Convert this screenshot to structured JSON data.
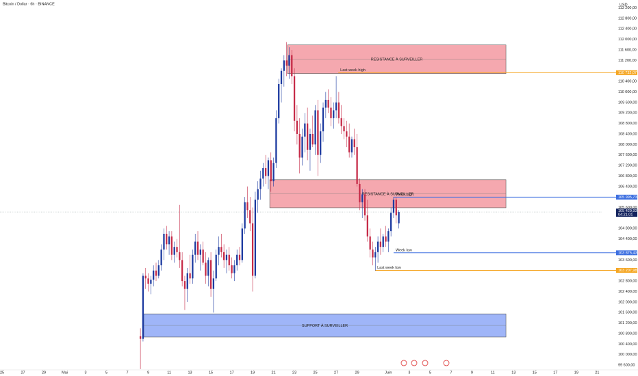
{
  "chart_data": {
    "type": "candlestick",
    "title": "Bitcoin / Dollar · 6h · BINANCE",
    "currency": "USD",
    "up_color": "#1c3aa0",
    "down_color": "#c62a47",
    "xlim": [
      -0.2,
      57.5
    ],
    "ylim": [
      99420,
      113500
    ],
    "xticks": [
      {
        "value": 0,
        "label": "25"
      },
      {
        "value": 2,
        "label": "27"
      },
      {
        "value": 4,
        "label": "29"
      },
      {
        "value": 6,
        "label": "Mai"
      },
      {
        "value": 8,
        "label": "3"
      },
      {
        "value": 10,
        "label": "5"
      },
      {
        "value": 12,
        "label": "7"
      },
      {
        "value": 14,
        "label": "9"
      },
      {
        "value": 16,
        "label": "11"
      },
      {
        "value": 18,
        "label": "13"
      },
      {
        "value": 20,
        "label": "15"
      },
      {
        "value": 22,
        "label": "17"
      },
      {
        "value": 24,
        "label": "19"
      },
      {
        "value": 26,
        "label": "21"
      },
      {
        "value": 28,
        "label": "23"
      },
      {
        "value": 30,
        "label": "25"
      },
      {
        "value": 32,
        "label": "27"
      },
      {
        "value": 34,
        "label": "29"
      },
      {
        "value": 37,
        "label": "Juin"
      },
      {
        "value": 39,
        "label": "3"
      },
      {
        "value": 41,
        "label": "5"
      },
      {
        "value": 43,
        "label": "7"
      },
      {
        "value": 45,
        "label": "9"
      },
      {
        "value": 47,
        "label": "11"
      },
      {
        "value": 49,
        "label": "13"
      },
      {
        "value": 51,
        "label": "15"
      },
      {
        "value": 53,
        "label": "17"
      },
      {
        "value": 55,
        "label": "19"
      },
      {
        "value": 57,
        "label": "21"
      }
    ],
    "yticks": [
      {
        "value": 113200,
        "label": "113 200,00"
      },
      {
        "value": 112800,
        "label": "112 800,00"
      },
      {
        "value": 112400,
        "label": "112 400,00"
      },
      {
        "value": 112000,
        "label": "112 000,00"
      },
      {
        "value": 111600,
        "label": "111 600,00"
      },
      {
        "value": 111200,
        "label": "111 200,00"
      },
      {
        "value": 110400,
        "label": "110 400,00"
      },
      {
        "value": 110000,
        "label": "110 000,00"
      },
      {
        "value": 109600,
        "label": "109 600,00"
      },
      {
        "value": 109200,
        "label": "109 200,00"
      },
      {
        "value": 108800,
        "label": "108 800,00"
      },
      {
        "value": 108400,
        "label": "108 400,00"
      },
      {
        "value": 108000,
        "label": "108 000,00"
      },
      {
        "value": 107600,
        "label": "107 600,00"
      },
      {
        "value": 107200,
        "label": "107 200,00"
      },
      {
        "value": 106800,
        "label": "106 800,00"
      },
      {
        "value": 106400,
        "label": "106 400,00"
      },
      {
        "value": 105600,
        "label": "105 600,00"
      },
      {
        "value": 104800,
        "label": "104 800,00"
      },
      {
        "value": 104400,
        "label": "104 400,00"
      },
      {
        "value": 103600,
        "label": "103 600,00"
      },
      {
        "value": 102800,
        "label": "102 800,00"
      },
      {
        "value": 102400,
        "label": "102 400,00"
      },
      {
        "value": 102000,
        "label": "102 000,00"
      },
      {
        "value": 101600,
        "label": "101 600,00"
      },
      {
        "value": 101200,
        "label": "101 200,00"
      },
      {
        "value": 100800,
        "label": "100 800,00"
      },
      {
        "value": 100400,
        "label": "100 400,00"
      },
      {
        "value": 100000,
        "label": "100 000,00"
      },
      {
        "value": 99600,
        "label": "99 600,00"
      }
    ],
    "x": [
      13.25,
      13.5,
      13.75,
      14,
      14.25,
      14.5,
      14.75,
      15,
      15.25,
      15.5,
      15.75,
      16,
      16.25,
      16.5,
      16.75,
      17,
      17.25,
      17.5,
      17.75,
      18,
      18.25,
      18.5,
      18.75,
      19,
      19.25,
      19.5,
      19.75,
      20,
      20.25,
      20.5,
      20.75,
      21,
      21.25,
      21.5,
      21.75,
      22,
      22.25,
      22.5,
      22.75,
      23,
      23.25,
      23.5,
      23.75,
      24,
      24.25,
      24.5,
      24.75,
      25,
      25.25,
      25.5,
      25.75,
      26,
      26.25,
      26.5,
      26.75,
      27,
      27.25,
      27.5,
      27.75,
      28,
      28.25,
      28.5,
      28.75,
      29,
      29.25,
      29.5,
      29.75,
      30,
      30.25,
      30.5,
      30.75,
      31,
      31.25,
      31.5,
      31.75,
      32,
      32.25,
      32.5,
      32.75,
      33,
      33.25,
      33.5,
      33.75,
      34,
      34.25,
      34.5,
      34.75,
      35,
      35.25,
      35.5,
      35.75,
      36,
      36.25,
      36.5,
      36.75,
      37,
      37.25,
      37.5,
      37.75,
      38
    ],
    "ohlc": [
      [
        100700,
        101000,
        99450,
        100600
      ],
      [
        100600,
        103100,
        100500,
        103000
      ],
      [
        103000,
        103300,
        102500,
        102900
      ],
      [
        102900,
        103100,
        102400,
        102700
      ],
      [
        102700,
        103000,
        102300,
        102850
      ],
      [
        102850,
        103400,
        102600,
        103200
      ],
      [
        103200,
        103500,
        102800,
        103000
      ],
      [
        103000,
        103600,
        102900,
        103400
      ],
      [
        103400,
        104200,
        103200,
        104000
      ],
      [
        104000,
        104800,
        103600,
        104600
      ],
      [
        104600,
        104900,
        104000,
        104200
      ],
      [
        104200,
        104700,
        103800,
        104500
      ],
      [
        104500,
        104700,
        103600,
        103800
      ],
      [
        103800,
        104300,
        103500,
        104100
      ],
      [
        104100,
        104400,
        103700,
        103900
      ],
      [
        103900,
        105700,
        103300,
        103600
      ],
      [
        103600,
        103900,
        102600,
        102800
      ],
      [
        102800,
        103000,
        101700,
        102500
      ],
      [
        102500,
        103300,
        102000,
        103100
      ],
      [
        103100,
        103800,
        102700,
        102900
      ],
      [
        102900,
        104000,
        102700,
        103800
      ],
      [
        103800,
        104600,
        103500,
        104300
      ],
      [
        104300,
        104700,
        103600,
        103800
      ],
      [
        103800,
        104200,
        103200,
        104000
      ],
      [
        104000,
        104300,
        103400,
        103500
      ],
      [
        103500,
        103900,
        102700,
        103000
      ],
      [
        103000,
        103700,
        102600,
        103600
      ],
      [
        103600,
        103900,
        102200,
        102500
      ],
      [
        102500,
        103200,
        101600,
        102900
      ],
      [
        102900,
        104000,
        102800,
        103800
      ],
      [
        103800,
        104500,
        103400,
        104100
      ],
      [
        104100,
        104600,
        103700,
        103900
      ],
      [
        103900,
        104200,
        103300,
        103600
      ],
      [
        103600,
        104000,
        103100,
        103800
      ],
      [
        103800,
        104100,
        103200,
        103400
      ],
      [
        103400,
        103700,
        102900,
        103100
      ],
      [
        103100,
        103600,
        102800,
        103400
      ],
      [
        103400,
        104000,
        103200,
        103800
      ],
      [
        103800,
        104100,
        103400,
        103600
      ],
      [
        103600,
        105000,
        103500,
        104800
      ],
      [
        104800,
        106000,
        104600,
        105800
      ],
      [
        105800,
        106400,
        105200,
        105500
      ],
      [
        105500,
        106000,
        104700,
        105000
      ],
      [
        105000,
        105600,
        102400,
        103000
      ],
      [
        103000,
        106200,
        102900,
        105900
      ],
      [
        105900,
        106600,
        105400,
        106300
      ],
      [
        106300,
        107000,
        105900,
        106700
      ],
      [
        106700,
        107300,
        106400,
        107100
      ],
      [
        107100,
        107600,
        106500,
        106800
      ],
      [
        106800,
        107500,
        106300,
        107400
      ],
      [
        107400,
        107700,
        106200,
        106600
      ],
      [
        106600,
        107500,
        106400,
        107300
      ],
      [
        107300,
        109300,
        107100,
        109000
      ],
      [
        109000,
        110500,
        108800,
        110300
      ],
      [
        110300,
        110900,
        109600,
        110800
      ],
      [
        110800,
        111400,
        110200,
        111200
      ],
      [
        111200,
        111900,
        110600,
        111000
      ],
      [
        111000,
        111700,
        110500,
        111400
      ],
      [
        111400,
        111600,
        110300,
        110600
      ],
      [
        110600,
        110900,
        108500,
        108900
      ],
      [
        108900,
        109500,
        108000,
        108400
      ],
      [
        108400,
        109000,
        106900,
        107500
      ],
      [
        107500,
        108600,
        107200,
        108300
      ],
      [
        108300,
        109200,
        107700,
        108800
      ],
      [
        108800,
        109400,
        107400,
        107800
      ],
      [
        107800,
        108600,
        107000,
        108400
      ],
      [
        108400,
        109100,
        107900,
        108000
      ],
      [
        108000,
        109500,
        107600,
        109300
      ],
      [
        109300,
        109700,
        106800,
        107600
      ],
      [
        107600,
        108800,
        107300,
        108500
      ],
      [
        108500,
        109600,
        108100,
        109400
      ],
      [
        109400,
        110000,
        109000,
        109700
      ],
      [
        109700,
        110100,
        109200,
        109400
      ],
      [
        109400,
        109800,
        108700,
        109000
      ],
      [
        109000,
        109600,
        108600,
        109300
      ],
      [
        109300,
        110600,
        109000,
        109600
      ],
      [
        109600,
        110000,
        108800,
        109000
      ],
      [
        109000,
        109500,
        108400,
        108700
      ],
      [
        108700,
        109000,
        108200,
        108500
      ],
      [
        108500,
        108900,
        107900,
        108300
      ],
      [
        108300,
        108800,
        107500,
        107700
      ],
      [
        107700,
        108300,
        107500,
        108200
      ],
      [
        108200,
        108600,
        107600,
        107900
      ],
      [
        107900,
        108400,
        106400,
        106500
      ],
      [
        106500,
        106700,
        105500,
        105800
      ],
      [
        105800,
        106300,
        105200,
        106100
      ],
      [
        106100,
        106300,
        105100,
        105300
      ],
      [
        105300,
        105900,
        104300,
        104500
      ],
      [
        104500,
        104800,
        103700,
        104000
      ],
      [
        104000,
        104300,
        103400,
        103700
      ],
      [
        103700,
        104100,
        103200,
        103900
      ],
      [
        103900,
        104500,
        103500,
        104300
      ],
      [
        104300,
        104800,
        103800,
        104100
      ],
      [
        104100,
        104600,
        103900,
        104500
      ],
      [
        104500,
        104900,
        104100,
        104300
      ],
      [
        104300,
        104800,
        103900,
        104700
      ],
      [
        104700,
        105600,
        104500,
        105400
      ],
      [
        105400,
        106000,
        105200,
        105900
      ],
      [
        105900,
        106000,
        105000,
        105300
      ],
      [
        105000,
        105500,
        104800,
        105429.93
      ]
    ],
    "zones": [
      {
        "label": "RESISTANCE À SURVEILLER",
        "top": 111790,
        "bottom": 110700,
        "start": 27.34,
        "end": 48.26,
        "color": "#f28b94"
      },
      {
        "label": "RESISTANCE À SURVEILLER",
        "top": 106660,
        "bottom": 105590,
        "start": 25.64,
        "end": 48.26,
        "color": "#f28b94"
      },
      {
        "label": "SUPPORT À SURVEILLER",
        "top": 101550,
        "bottom": 100670,
        "start": 13.57,
        "end": 48.26,
        "color": "#7f9cf5"
      }
    ],
    "levels": [
      {
        "name": "Last week high",
        "value": 110732.07,
        "value_label": "110 732,07",
        "start": 32.2,
        "color": "#f5a623"
      },
      {
        "name": "Week high",
        "value": 105995.73,
        "value_label": "105 995,73",
        "start": 37.5,
        "color": "#3d6fe0"
      },
      {
        "name": "Week low",
        "value": 103875.43,
        "value_label": "103 875,43",
        "start": 37.5,
        "color": "#3d6fe0"
      },
      {
        "name": "Last week low",
        "value": 103207.98,
        "value_label": "103 207,98",
        "start": 35.74,
        "color": "#f5a623"
      }
    ],
    "last_price": {
      "value": 105429.93,
      "value_label": "105 429,93",
      "countdown": "04:21:01",
      "color": "#13235e"
    }
  }
}
